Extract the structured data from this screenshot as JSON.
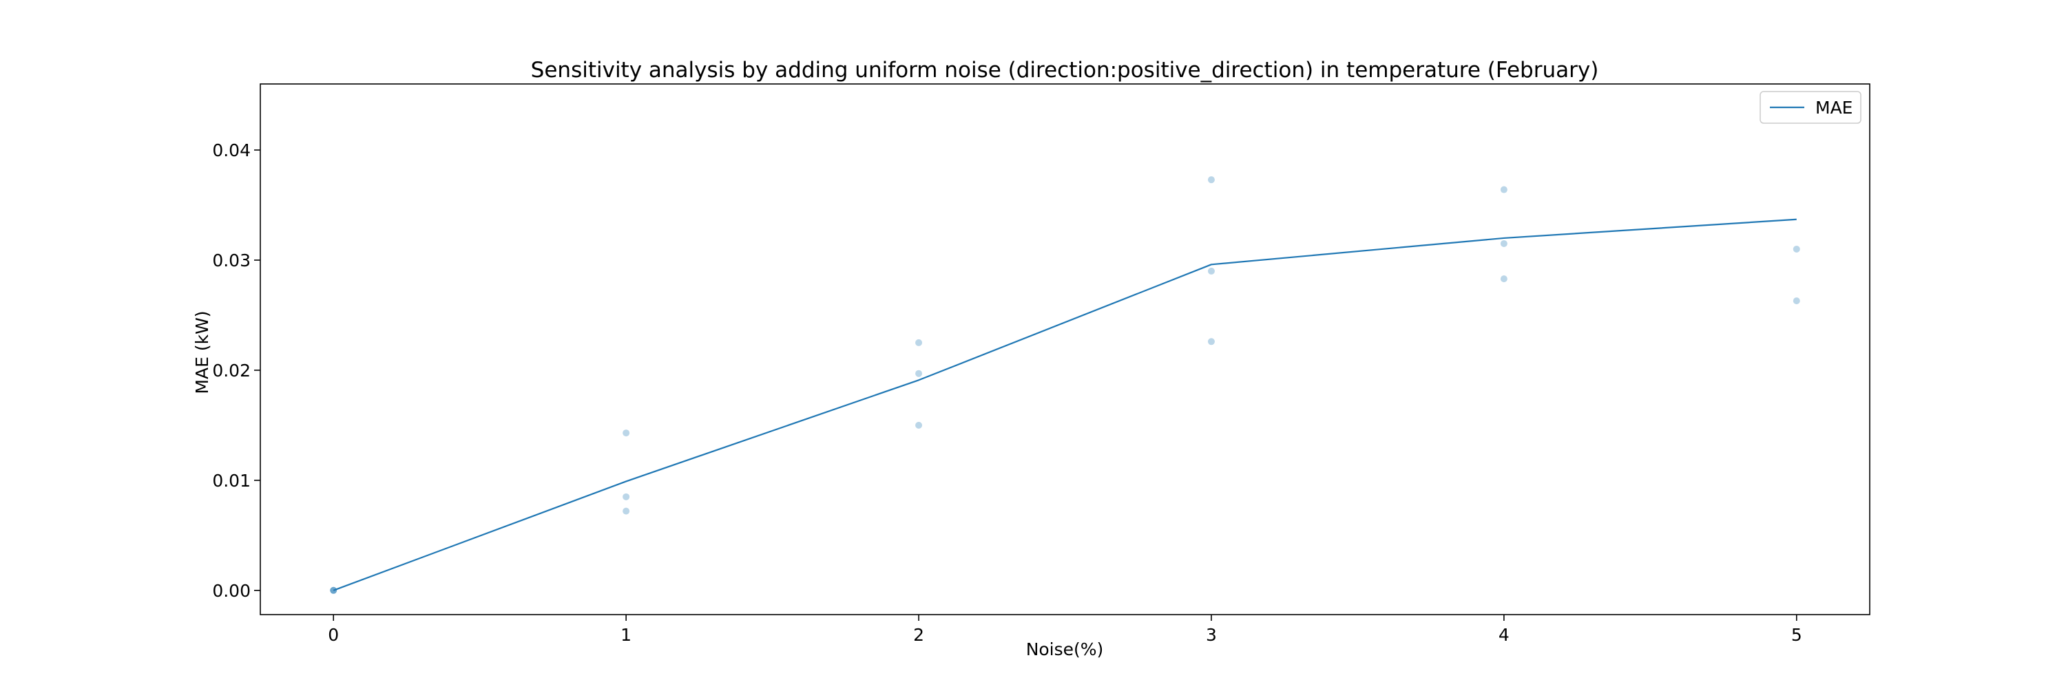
{
  "chart_data": {
    "type": "line",
    "title": "Sensitivity analysis by adding uniform noise (direction:positive_direction) in temperature (February)",
    "xlabel": "Noise(%)",
    "ylabel": "MAE (kW)",
    "xlim": [
      -0.25,
      5.25
    ],
    "ylim": [
      -0.0022,
      0.046
    ],
    "xticks": [
      0,
      1,
      2,
      3,
      4,
      5
    ],
    "xtick_labels": [
      "0",
      "1",
      "2",
      "3",
      "4",
      "5"
    ],
    "yticks": [
      0.0,
      0.01,
      0.02,
      0.03,
      0.04
    ],
    "ytick_labels": [
      "0.00",
      "0.01",
      "0.02",
      "0.03",
      "0.04"
    ],
    "grid": false,
    "legend": {
      "placement": "upper right",
      "entries": [
        "MAE"
      ]
    },
    "series": [
      {
        "name": "MAE",
        "kind": "line",
        "color": "#1f77b4",
        "x": [
          0,
          1,
          2,
          3,
          4,
          5
        ],
        "y": [
          0.0,
          0.0099,
          0.0191,
          0.0296,
          0.032,
          0.0337
        ]
      },
      {
        "kind": "scatter",
        "color": "#1f77b4",
        "alpha": 0.3,
        "x": [
          0,
          0,
          0,
          1,
          1,
          1,
          2,
          2,
          2,
          3,
          3,
          3,
          4,
          4,
          4,
          5,
          5
        ],
        "y": [
          0.0,
          0.0,
          0.0,
          0.0143,
          0.0085,
          0.0072,
          0.0225,
          0.0197,
          0.015,
          0.0373,
          0.029,
          0.0226,
          0.0364,
          0.0315,
          0.0283,
          0.031,
          0.0263
        ]
      }
    ]
  }
}
